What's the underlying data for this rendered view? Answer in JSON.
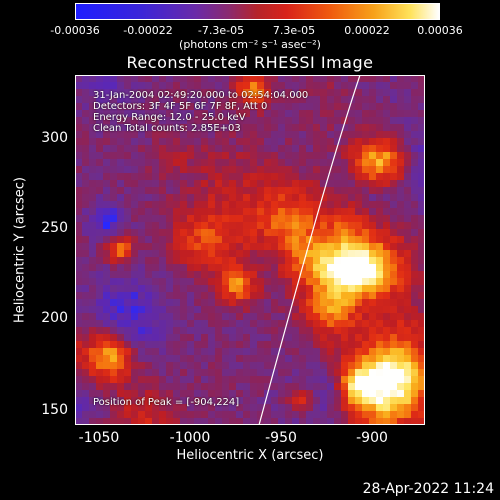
{
  "colorbar": {
    "ticks": [
      "-0.00036",
      "-0.00022",
      "-7.3e-05",
      "7.3e-05",
      "0.00022",
      "0.00036"
    ],
    "units": "(photons cm⁻² s⁻¹ asec⁻²)",
    "colors": [
      "#1e1eff",
      "#6a2aa8",
      "#b6242a",
      "#ef5a0f",
      "#ffe25a",
      "#ffffff"
    ]
  },
  "title": "Reconstructed RHESSI Image",
  "info": {
    "time_range": "31-Jan-2004 02:49:20.000 to 02:54:04.000",
    "detectors": "Detectors: 3F 4F 5F 6F 7F 8F, Att 0",
    "energy": "Energy Range: 12.0 - 25.0 keV",
    "clean": "Clean    Total counts: 2.85E+03",
    "peak": "Position of Peak = [-904,224]"
  },
  "axes": {
    "xlabel": "Heliocentric X (arcsec)",
    "ylabel": "Heliocentric Y (arcsec)",
    "xticks": [
      "-1050",
      "-1000",
      "-950",
      "-900"
    ],
    "yticks": [
      "150",
      "200",
      "250",
      "300"
    ]
  },
  "footer": {
    "timestamp": "28-Apr-2022 11:24"
  }
}
